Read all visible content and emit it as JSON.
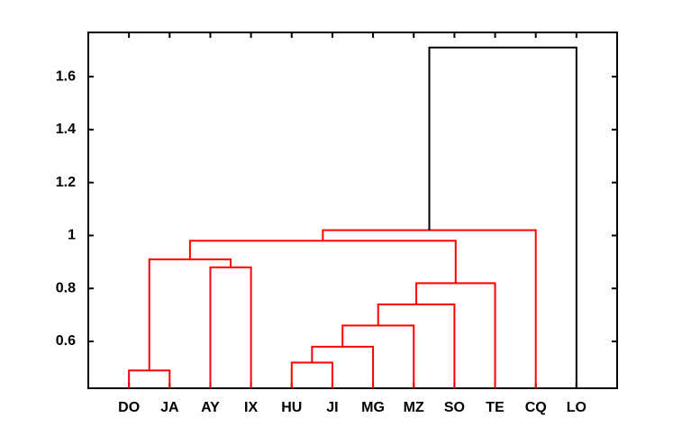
{
  "chart_data": {
    "type": "dendrogram",
    "leaves": [
      "DO",
      "JA",
      "AY",
      "IX",
      "HU",
      "JI",
      "MG",
      "MZ",
      "SO",
      "TE",
      "CQ",
      "LO"
    ],
    "merges": [
      {
        "left": 0,
        "right": 1,
        "height": 0.49,
        "color": "#ff0000"
      },
      {
        "left": 4,
        "right": 5,
        "height": 0.52,
        "color": "#ff0000"
      },
      {
        "left": 13,
        "right": 6,
        "height": 0.58,
        "color": "#ff0000"
      },
      {
        "left": 14,
        "right": 7,
        "height": 0.66,
        "color": "#ff0000"
      },
      {
        "left": 15,
        "right": 8,
        "height": 0.74,
        "color": "#ff0000"
      },
      {
        "left": 16,
        "right": 9,
        "height": 0.82,
        "color": "#ff0000"
      },
      {
        "left": 2,
        "right": 3,
        "height": 0.88,
        "color": "#ff0000"
      },
      {
        "left": 12,
        "right": 18,
        "height": 0.91,
        "color": "#ff0000"
      },
      {
        "left": 19,
        "right": 17,
        "height": 0.98,
        "color": "#ff0000"
      },
      {
        "left": 20,
        "right": 10,
        "height": 1.02,
        "color": "#ff0000"
      },
      {
        "left": 21,
        "right": 11,
        "height": 1.71,
        "color": "#000000"
      }
    ],
    "ylim": [
      0.423,
      1.767
    ],
    "yticks": [
      0.6,
      0.8,
      1,
      1.2,
      1.4,
      1.6
    ]
  }
}
